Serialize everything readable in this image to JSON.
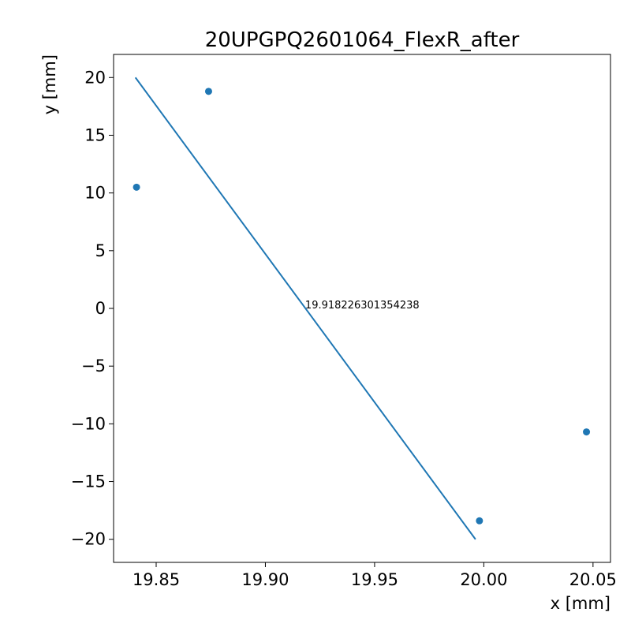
{
  "chart_data": {
    "type": "scatter",
    "title": "20UPGPQ2601064_FlexR_after",
    "xlabel": "x [mm]",
    "ylabel": "y [mm]",
    "xlim": [
      19.8305,
      20.058
    ],
    "ylim": [
      -22,
      22
    ],
    "x_ticks": [
      19.85,
      19.9,
      19.95,
      20.0,
      20.05
    ],
    "x_tick_labels": [
      "19.85",
      "19.90",
      "19.95",
      "20.00",
      "20.05"
    ],
    "y_ticks": [
      -20,
      -15,
      -10,
      -5,
      0,
      5,
      10,
      15,
      20
    ],
    "y_tick_labels": [
      "−20",
      "−15",
      "−10",
      "−5",
      "0",
      "5",
      "10",
      "15",
      "20"
    ],
    "grid": false,
    "color": "#1f77b4",
    "points": [
      {
        "x": 19.841,
        "y": 10.5
      },
      {
        "x": 19.874,
        "y": 18.8
      },
      {
        "x": 19.998,
        "y": -18.4
      },
      {
        "x": 20.047,
        "y": -10.7
      }
    ],
    "fit_line": {
      "x": [
        19.8405,
        19.9962
      ],
      "y": [
        20,
        -20
      ]
    },
    "annotation": {
      "text": "19.918226301354238",
      "x": 19.918226301354238,
      "y": 0
    }
  }
}
